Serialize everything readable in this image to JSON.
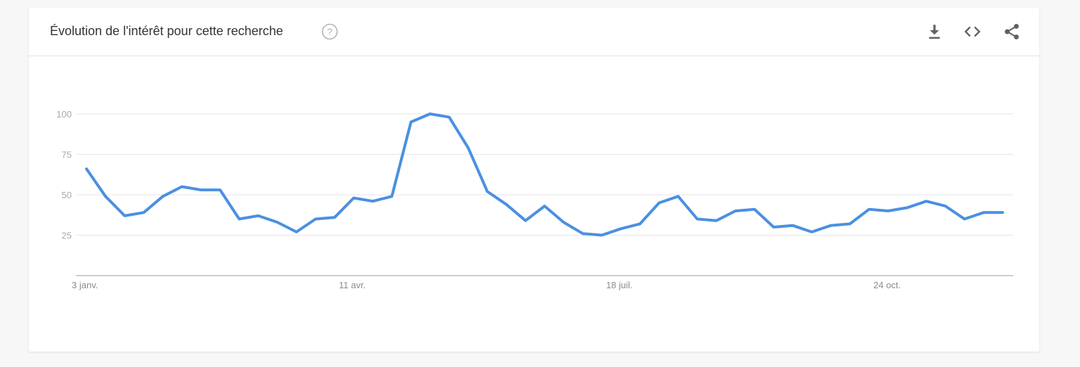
{
  "header": {
    "title": "Évolution de l'intérêt pour cette recherche",
    "help_icon": "help-circle-icon",
    "tools": [
      "download-icon",
      "embed-code-icon",
      "share-icon"
    ]
  },
  "colors": {
    "line": "#4a90e2",
    "grid": "#e6e6e6",
    "axis": "#9e9e9e"
  },
  "chart_data": {
    "type": "line",
    "ylim": [
      0,
      100
    ],
    "yticks": [
      25,
      50,
      75,
      100
    ],
    "xtick_labels": [
      {
        "label": "3 janv.",
        "index": 0
      },
      {
        "label": "11 avr.",
        "index": 14
      },
      {
        "label": "18 juil.",
        "index": 28
      },
      {
        "label": "24 oct.",
        "index": 42
      }
    ],
    "grid": true,
    "values": [
      66,
      49,
      37,
      39,
      49,
      55,
      53,
      53,
      35,
      37,
      33,
      27,
      35,
      36,
      48,
      46,
      49,
      95,
      100,
      98,
      79,
      52,
      44,
      34,
      43,
      33,
      26,
      25,
      29,
      32,
      45,
      49,
      35,
      34,
      40,
      41,
      30,
      31,
      27,
      31,
      32,
      41,
      40,
      42,
      46,
      43,
      35,
      39,
      39
    ]
  }
}
